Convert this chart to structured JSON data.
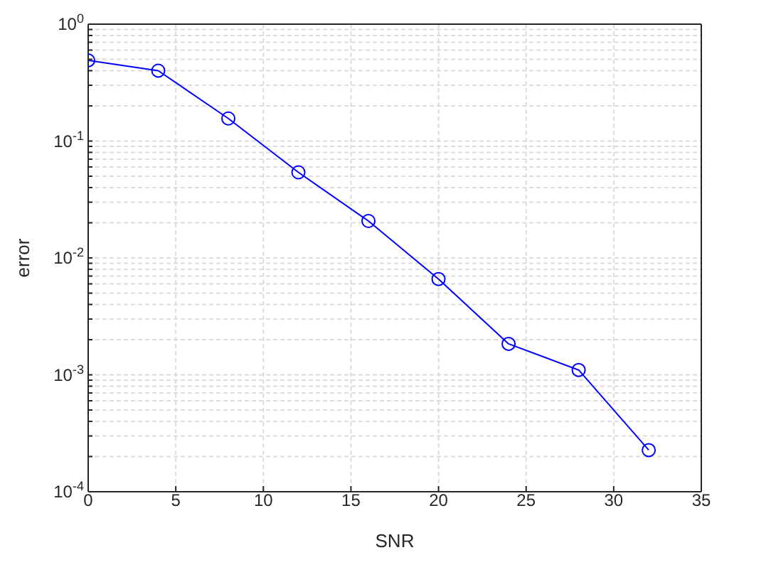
{
  "chart_data": {
    "type": "line",
    "xlabel": "SNR",
    "ylabel": "error",
    "x": [
      0,
      4,
      8,
      12,
      16,
      20,
      24,
      28,
      32
    ],
    "series": [
      {
        "color": "#0000ff",
        "values": [
          0.49,
          0.4,
          0.156,
          0.054,
          0.0207,
          0.0066,
          0.00184,
          0.0011,
          0.000227
        ]
      }
    ],
    "marker": "circle",
    "line_style": "solid",
    "log": "y",
    "grid": true,
    "xlim": [
      0,
      35
    ],
    "xticks": [
      0,
      5,
      10,
      15,
      20,
      25,
      30,
      35
    ],
    "ylim": [
      0.0001,
      1
    ],
    "yticks": [
      {
        "value": 0.0001,
        "label": "10$^{-4}$"
      },
      {
        "value": 0.0002,
        "label": null
      },
      {
        "value": 0.0003,
        "label": null
      },
      {
        "value": 0.0004,
        "label": null
      },
      {
        "value": 0.0005,
        "label": null
      },
      {
        "value": 0.0006,
        "label": null
      },
      {
        "value": 0.0007,
        "label": null
      },
      {
        "value": 0.0008,
        "label": null
      },
      {
        "value": 0.0009,
        "label": null
      },
      {
        "value": 0.001,
        "label": "10$^{-3}$"
      },
      {
        "value": 0.002,
        "label": null
      },
      {
        "value": 0.003,
        "label": null
      },
      {
        "value": 0.004,
        "label": null
      },
      {
        "value": 0.005,
        "label": null
      },
      {
        "value": 0.006,
        "label": null
      },
      {
        "value": 0.007,
        "label": null
      },
      {
        "value": 0.008,
        "label": null
      },
      {
        "value": 0.009,
        "label": null
      },
      {
        "value": 0.01,
        "label": "10$^{-2}$"
      },
      {
        "value": 0.02,
        "label": null
      },
      {
        "value": 0.03,
        "label": null
      },
      {
        "value": 0.04,
        "label": null
      },
      {
        "value": 0.05,
        "label": null
      },
      {
        "value": 0.06,
        "label": null
      },
      {
        "value": 0.07,
        "label": null
      },
      {
        "value": 0.08,
        "label": null
      },
      {
        "value": 0.09,
        "label": null
      },
      {
        "value": 0.1,
        "label": "10$^{-1}$"
      },
      {
        "value": 0.2,
        "label": null
      },
      {
        "value": 0.3,
        "label": null
      },
      {
        "value": 0.4,
        "label": null
      },
      {
        "value": 0.5,
        "label": null
      },
      {
        "value": 0.6,
        "label": null
      },
      {
        "value": 0.7,
        "label": null
      },
      {
        "value": 0.8,
        "label": null
      },
      {
        "value": 0.9,
        "label": null
      },
      {
        "value": 1,
        "label": "10$^{0}$"
      }
    ]
  }
}
